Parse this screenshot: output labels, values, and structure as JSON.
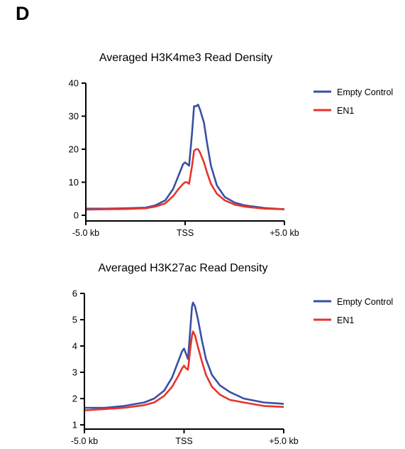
{
  "panel_label": "D",
  "chart_data": [
    {
      "type": "line",
      "title": "Averaged H3K4me3 Read Density",
      "xlabel": "",
      "ylabel": "",
      "x_tick_labels": [
        "-5.0 kb",
        "TSS",
        "+5.0 kb"
      ],
      "x_range_kb": [
        -5,
        5
      ],
      "ylim": [
        0,
        40
      ],
      "y_ticks": [
        0,
        10,
        20,
        30,
        40
      ],
      "grid": false,
      "legend_position": "right",
      "series": [
        {
          "name": "Empty Control",
          "color": "#3a4fa3",
          "points": [
            [
              -5.0,
              2.0
            ],
            [
              -4.0,
              2.0
            ],
            [
              -3.0,
              2.1
            ],
            [
              -2.0,
              2.3
            ],
            [
              -1.5,
              3.0
            ],
            [
              -1.0,
              4.5
            ],
            [
              -0.6,
              8.0
            ],
            [
              -0.3,
              12.5
            ],
            [
              -0.1,
              15.5
            ],
            [
              0.0,
              16.0
            ],
            [
              0.1,
              15.5
            ],
            [
              0.2,
              15.0
            ],
            [
              0.35,
              25.0
            ],
            [
              0.45,
              33.0
            ],
            [
              0.55,
              33.0
            ],
            [
              0.65,
              33.5
            ],
            [
              0.75,
              32.0
            ],
            [
              0.95,
              28.0
            ],
            [
              1.1,
              22.0
            ],
            [
              1.3,
              15.0
            ],
            [
              1.6,
              9.0
            ],
            [
              2.0,
              5.5
            ],
            [
              2.5,
              3.8
            ],
            [
              3.0,
              3.0
            ],
            [
              4.0,
              2.2
            ],
            [
              5.0,
              1.8
            ]
          ]
        },
        {
          "name": "EN1",
          "color": "#e8332b",
          "points": [
            [
              -5.0,
              1.7
            ],
            [
              -4.0,
              1.8
            ],
            [
              -3.0,
              1.9
            ],
            [
              -2.0,
              2.1
            ],
            [
              -1.5,
              2.6
            ],
            [
              -1.0,
              3.6
            ],
            [
              -0.6,
              5.8
            ],
            [
              -0.3,
              8.2
            ],
            [
              -0.1,
              9.5
            ],
            [
              0.0,
              10.0
            ],
            [
              0.1,
              10.0
            ],
            [
              0.2,
              9.5
            ],
            [
              0.35,
              15.0
            ],
            [
              0.45,
              19.5
            ],
            [
              0.55,
              20.0
            ],
            [
              0.65,
              20.0
            ],
            [
              0.75,
              19.0
            ],
            [
              0.95,
              16.0
            ],
            [
              1.1,
              13.0
            ],
            [
              1.3,
              9.5
            ],
            [
              1.6,
              6.5
            ],
            [
              2.0,
              4.5
            ],
            [
              2.5,
              3.2
            ],
            [
              3.0,
              2.6
            ],
            [
              4.0,
              2.0
            ],
            [
              5.0,
              1.8
            ]
          ]
        }
      ]
    },
    {
      "type": "line",
      "title": "Averaged H3K27ac Read Density",
      "xlabel": "",
      "ylabel": "",
      "x_tick_labels": [
        "-5.0 kb",
        "TSS",
        "+5.0 kb"
      ],
      "x_range_kb": [
        -5,
        5
      ],
      "ylim": [
        1,
        6
      ],
      "y_ticks": [
        1,
        2,
        3,
        4,
        5,
        6
      ],
      "grid": false,
      "legend_position": "right",
      "series": [
        {
          "name": "Empty Control",
          "color": "#3a4fa3",
          "points": [
            [
              -5.0,
              1.65
            ],
            [
              -4.0,
              1.65
            ],
            [
              -3.0,
              1.72
            ],
            [
              -2.0,
              1.85
            ],
            [
              -1.5,
              2.0
            ],
            [
              -1.0,
              2.3
            ],
            [
              -0.6,
              2.8
            ],
            [
              -0.3,
              3.4
            ],
            [
              -0.1,
              3.8
            ],
            [
              0.0,
              3.9
            ],
            [
              0.1,
              3.7
            ],
            [
              0.2,
              3.5
            ],
            [
              0.3,
              4.5
            ],
            [
              0.4,
              5.5
            ],
            [
              0.45,
              5.65
            ],
            [
              0.55,
              5.5
            ],
            [
              0.7,
              5.0
            ],
            [
              0.9,
              4.2
            ],
            [
              1.1,
              3.5
            ],
            [
              1.4,
              2.9
            ],
            [
              1.8,
              2.5
            ],
            [
              2.3,
              2.25
            ],
            [
              3.0,
              2.0
            ],
            [
              4.0,
              1.85
            ],
            [
              5.0,
              1.8
            ]
          ]
        },
        {
          "name": "EN1",
          "color": "#e8332b",
          "points": [
            [
              -5.0,
              1.55
            ],
            [
              -4.0,
              1.6
            ],
            [
              -3.0,
              1.65
            ],
            [
              -2.0,
              1.75
            ],
            [
              -1.5,
              1.85
            ],
            [
              -1.0,
              2.1
            ],
            [
              -0.6,
              2.45
            ],
            [
              -0.3,
              2.85
            ],
            [
              -0.1,
              3.15
            ],
            [
              0.0,
              3.25
            ],
            [
              0.1,
              3.15
            ],
            [
              0.2,
              3.1
            ],
            [
              0.3,
              3.8
            ],
            [
              0.4,
              4.4
            ],
            [
              0.45,
              4.55
            ],
            [
              0.55,
              4.4
            ],
            [
              0.7,
              3.95
            ],
            [
              0.9,
              3.4
            ],
            [
              1.1,
              2.9
            ],
            [
              1.4,
              2.45
            ],
            [
              1.8,
              2.15
            ],
            [
              2.3,
              1.95
            ],
            [
              3.0,
              1.85
            ],
            [
              4.0,
              1.72
            ],
            [
              5.0,
              1.68
            ]
          ]
        }
      ]
    }
  ]
}
